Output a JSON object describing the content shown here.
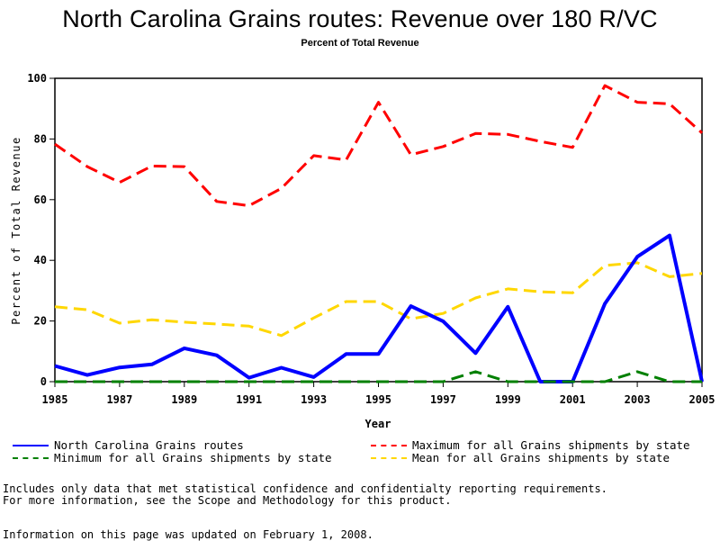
{
  "header": {
    "title": "North Carolina Grains routes: Revenue over 180 R/VC",
    "subtitle": "Percent of Total Revenue"
  },
  "chart_data": {
    "type": "line",
    "title": "North Carolina Grains routes: Revenue over 180 R/VC",
    "subtitle": "Percent of Total Revenue",
    "xlabel": "Year",
    "ylabel": "Percent of Total Revenue",
    "x": [
      1985,
      1986,
      1987,
      1988,
      1989,
      1990,
      1991,
      1992,
      1993,
      1994,
      1995,
      1996,
      1997,
      1998,
      1999,
      2000,
      2001,
      2002,
      2003,
      2004,
      2005
    ],
    "xlim": [
      1985,
      2005
    ],
    "ylim": [
      0,
      100
    ],
    "xticks": [
      "1985",
      "1987",
      "1989",
      "1991",
      "1993",
      "1995",
      "1997",
      "1999",
      "2001",
      "2003",
      "2005"
    ],
    "yticks": [
      "0",
      "20",
      "40",
      "60",
      "80",
      "100"
    ],
    "grid": false,
    "legend_position": "bottom",
    "series": [
      {
        "name": "North Carolina Grains routes",
        "color": "#0000ff",
        "style": "solid",
        "values": [
          5.2,
          2.2,
          4.7,
          5.7,
          11.0,
          8.7,
          1.3,
          4.6,
          1.5,
          9.1,
          9.1,
          24.9,
          19.9,
          9.4,
          24.7,
          0,
          0,
          25.7,
          41.2,
          48.2,
          0
        ]
      },
      {
        "name": "Minimum for all Grains shipments by state",
        "color": "#008000",
        "style": "dashed",
        "values": [
          0,
          0,
          0,
          0,
          0,
          0,
          0,
          0,
          0,
          0,
          0,
          0,
          0,
          3.3,
          0,
          0,
          0,
          0,
          3.3,
          0,
          0
        ]
      },
      {
        "name": "Maximum for all Grains shipments by state",
        "color": "#ff0000",
        "style": "dashed",
        "values": [
          78.3,
          70.9,
          65.7,
          71.1,
          70.9,
          59.4,
          58.0,
          63.7,
          74.5,
          73.1,
          92.1,
          74.8,
          77.5,
          81.8,
          81.5,
          79.2,
          77.2,
          97.6,
          92.1,
          91.6,
          82.0
        ]
      },
      {
        "name": "Mean for all Grains shipments by state",
        "color": "#ffd700",
        "style": "dashed",
        "values": [
          24.7,
          23.7,
          19.3,
          20.4,
          19.6,
          19.0,
          18.3,
          15.2,
          21.0,
          26.4,
          26.4,
          20.7,
          22.5,
          27.6,
          30.6,
          29.6,
          29.3,
          38.3,
          39.2,
          34.6,
          35.7
        ]
      }
    ]
  },
  "legend": {
    "items": [
      {
        "label": "North Carolina Grains routes",
        "color": "#0000ff",
        "style": "solid"
      },
      {
        "label": "Minimum for all Grains shipments by state",
        "color": "#008000",
        "style": "dashed"
      },
      {
        "label": "Maximum for all Grains shipments by state",
        "color": "#ff0000",
        "style": "dashed"
      },
      {
        "label": "Mean for all Grains shipments by state",
        "color": "#ffd700",
        "style": "dashed"
      }
    ]
  },
  "footer": {
    "note_line1": "Includes only data that met statistical confidence and confidentialty reporting requirements.",
    "note_line2": "For more information, see the Scope and Methodology for this product.",
    "updated": "Information on this page was updated on February 1, 2008."
  }
}
